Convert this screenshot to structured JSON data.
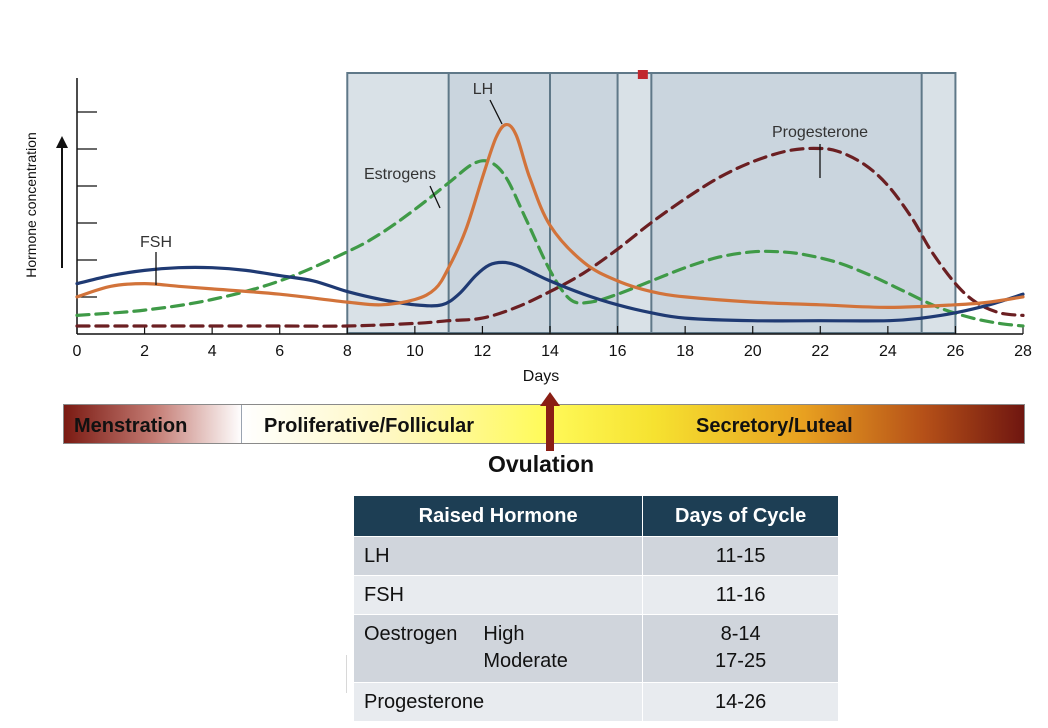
{
  "chart_data": {
    "type": "line",
    "xlabel": "Days",
    "ylabel": "Hormone concentration",
    "xlim": [
      0,
      28
    ],
    "x_ticks": [
      "0",
      "2",
      "4",
      "6",
      "8",
      "10",
      "12",
      "14",
      "16",
      "18",
      "20",
      "22",
      "24",
      "26",
      "28"
    ],
    "series": [
      {
        "name": "FSH",
        "color": "#1f3a73",
        "style": "solid",
        "x": [
          0,
          1,
          2,
          3,
          4,
          5,
          6,
          7,
          8,
          9,
          10,
          10.8,
          11.3,
          11.8,
          12.2,
          12.6,
          13,
          13.5,
          14,
          15,
          16,
          17,
          18,
          20,
          22,
          24,
          25,
          26,
          27,
          28
        ],
        "y": [
          0.16,
          0.19,
          0.21,
          0.22,
          0.22,
          0.21,
          0.19,
          0.17,
          0.13,
          0.1,
          0.08,
          0.08,
          0.12,
          0.19,
          0.23,
          0.24,
          0.23,
          0.2,
          0.17,
          0.12,
          0.08,
          0.05,
          0.03,
          0.02,
          0.02,
          0.02,
          0.03,
          0.05,
          0.08,
          0.12
        ]
      },
      {
        "name": "LH",
        "color": "#d2733a",
        "style": "solid",
        "x": [
          0,
          1,
          2,
          3,
          4,
          6,
          8,
          9,
          10,
          10.6,
          11,
          11.5,
          12,
          12.4,
          12.7,
          13,
          13.4,
          14,
          15,
          16,
          17,
          18,
          20,
          22,
          24,
          26,
          27,
          28
        ],
        "y": [
          0.11,
          0.15,
          0.16,
          0.15,
          0.14,
          0.12,
          0.09,
          0.08,
          0.1,
          0.14,
          0.22,
          0.36,
          0.56,
          0.71,
          0.76,
          0.72,
          0.56,
          0.38,
          0.24,
          0.17,
          0.13,
          0.11,
          0.09,
          0.08,
          0.07,
          0.08,
          0.09,
          0.11
        ]
      },
      {
        "name": "Estrogens",
        "color": "#3f9a47",
        "style": "dashed",
        "x": [
          0,
          2,
          4,
          6,
          8,
          9,
          10,
          11,
          11.7,
          12.2,
          12.7,
          13.3,
          14,
          14.6,
          15.2,
          16,
          17,
          18,
          19,
          20,
          20.8,
          21.5,
          22.5,
          23.5,
          24.5,
          25.5,
          26.5,
          27.3,
          28
        ],
        "y": [
          0.04,
          0.06,
          0.1,
          0.17,
          0.28,
          0.35,
          0.44,
          0.54,
          0.61,
          0.62,
          0.56,
          0.4,
          0.21,
          0.1,
          0.09,
          0.12,
          0.17,
          0.22,
          0.26,
          0.28,
          0.28,
          0.27,
          0.24,
          0.19,
          0.13,
          0.07,
          0.03,
          0.01,
          0.0
        ]
      },
      {
        "name": "Progesterone",
        "color": "#6b1f22",
        "style": "dashed",
        "x": [
          0,
          2,
          4,
          6,
          8,
          10,
          11,
          12,
          13,
          14,
          15,
          16,
          17,
          18,
          19,
          20,
          21,
          21.8,
          22.5,
          23.3,
          24,
          24.7,
          25.3,
          26,
          26.6,
          27.3,
          28
        ],
        "y": [
          0.0,
          0.0,
          0.0,
          0.0,
          0.0,
          0.01,
          0.02,
          0.03,
          0.07,
          0.13,
          0.2,
          0.29,
          0.39,
          0.48,
          0.56,
          0.62,
          0.66,
          0.67,
          0.66,
          0.61,
          0.53,
          0.41,
          0.28,
          0.16,
          0.09,
          0.05,
          0.04
        ]
      }
    ],
    "series_labels": [
      {
        "series": "FSH",
        "text": "FSH"
      },
      {
        "series": "LH",
        "text": "LH"
      },
      {
        "series": "Estrogens",
        "text": "Estrogens"
      },
      {
        "series": "Progesterone",
        "text": "Progesterone"
      }
    ],
    "highlight_windows_days": [
      [
        8,
        26
      ],
      [
        11,
        14
      ],
      [
        14,
        16
      ],
      [
        17,
        25
      ]
    ],
    "colors": {
      "window_fill": "#b9c8d3",
      "window_stroke": "#5f7888",
      "axis": "#111111"
    }
  },
  "phases": {
    "menstration": "Menstration",
    "follicular": "Proliferative/Follicular",
    "luteal": "Secretory/Luteal",
    "ovulation": "Ovulation"
  },
  "table": {
    "headers": [
      "Raised Hormone",
      "Days of Cycle"
    ],
    "rows": [
      {
        "hormone": "LH",
        "days": "11-15"
      },
      {
        "hormone": "FSH",
        "days": "11-16"
      },
      {
        "hormone": "Oestrogen",
        "sub1": "High",
        "sub2": "Moderate",
        "days1": "8-14",
        "days2": "17-25"
      },
      {
        "hormone": "Progesterone",
        "days": "14-26"
      }
    ]
  }
}
